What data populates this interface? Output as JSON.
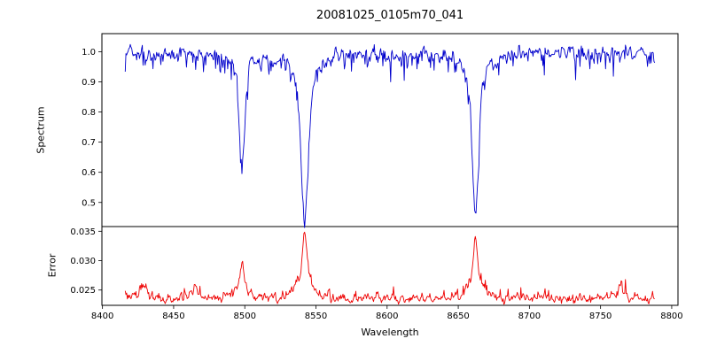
{
  "chart_data": {
    "type": "line",
    "title": "20081025_0105m70_041",
    "xlabel": "Wavelength",
    "xlim": [
      8399.6,
      8804.4
    ],
    "x_data_range": [
      8416,
      8788
    ],
    "x_step": 0.5,
    "seed": 20081025,
    "grid": false,
    "legend": "none",
    "xticks": {
      "values": [
        8400,
        8450,
        8500,
        8550,
        8600,
        8650,
        8700,
        8750,
        8800
      ],
      "labels": [
        "8400",
        "8450",
        "8500",
        "8550",
        "8600",
        "8650",
        "8700",
        "8750",
        "8800"
      ]
    },
    "panels": [
      {
        "name": "spectrum",
        "ylabel": "Spectrum",
        "color": "#0000cc",
        "ylim": [
          0.42,
          1.06
        ],
        "yticks": {
          "values": [
            0.5,
            0.6,
            0.7,
            0.8,
            0.9,
            1.0
          ],
          "labels": [
            "0.5",
            "0.6",
            "0.7",
            "0.8",
            "0.9",
            "1.0"
          ]
        },
        "continuum": 1.0,
        "noise": {
          "wiggle": 0.02,
          "spike": 0.018
        },
        "absorption_lines": [
          {
            "center": 8498.0,
            "depth": 0.38,
            "core_width": 1.8,
            "wing_width": 5.0,
            "wing_frac": 0.25,
            "min_flux": 0.62
          },
          {
            "center": 8542.1,
            "depth": 0.55,
            "core_width": 2.2,
            "wing_width": 7.0,
            "wing_frac": 0.3,
            "min_flux": 0.45
          },
          {
            "center": 8662.1,
            "depth": 0.53,
            "core_width": 2.0,
            "wing_width": 6.0,
            "wing_frac": 0.3,
            "min_flux": 0.47
          }
        ]
      },
      {
        "name": "error",
        "ylabel": "Error",
        "color": "#ee0000",
        "ylim": [
          0.0224,
          0.0358
        ],
        "yticks": {
          "values": [
            0.025,
            0.03,
            0.035
          ],
          "labels": [
            "0.025",
            "0.030",
            "0.035"
          ]
        },
        "baseline": 0.0235,
        "noise": {
          "wiggle": 0.0007,
          "spike": 0.0004
        },
        "peaks": [
          {
            "center": 8429.0,
            "height": 0.0025,
            "width": 1.5
          },
          {
            "center": 8465.0,
            "height": 0.0025,
            "width": 1.5
          },
          {
            "center": 8498.0,
            "height": 0.0062,
            "width": 1.6,
            "max_error": 0.03
          },
          {
            "center": 8542.1,
            "height": 0.0115,
            "width": 2.0,
            "max_error": 0.035
          },
          {
            "center": 8662.1,
            "height": 0.0105,
            "width": 1.8,
            "max_error": 0.034
          },
          {
            "center": 8764.0,
            "height": 0.0022,
            "width": 1.5
          }
        ]
      }
    ]
  }
}
